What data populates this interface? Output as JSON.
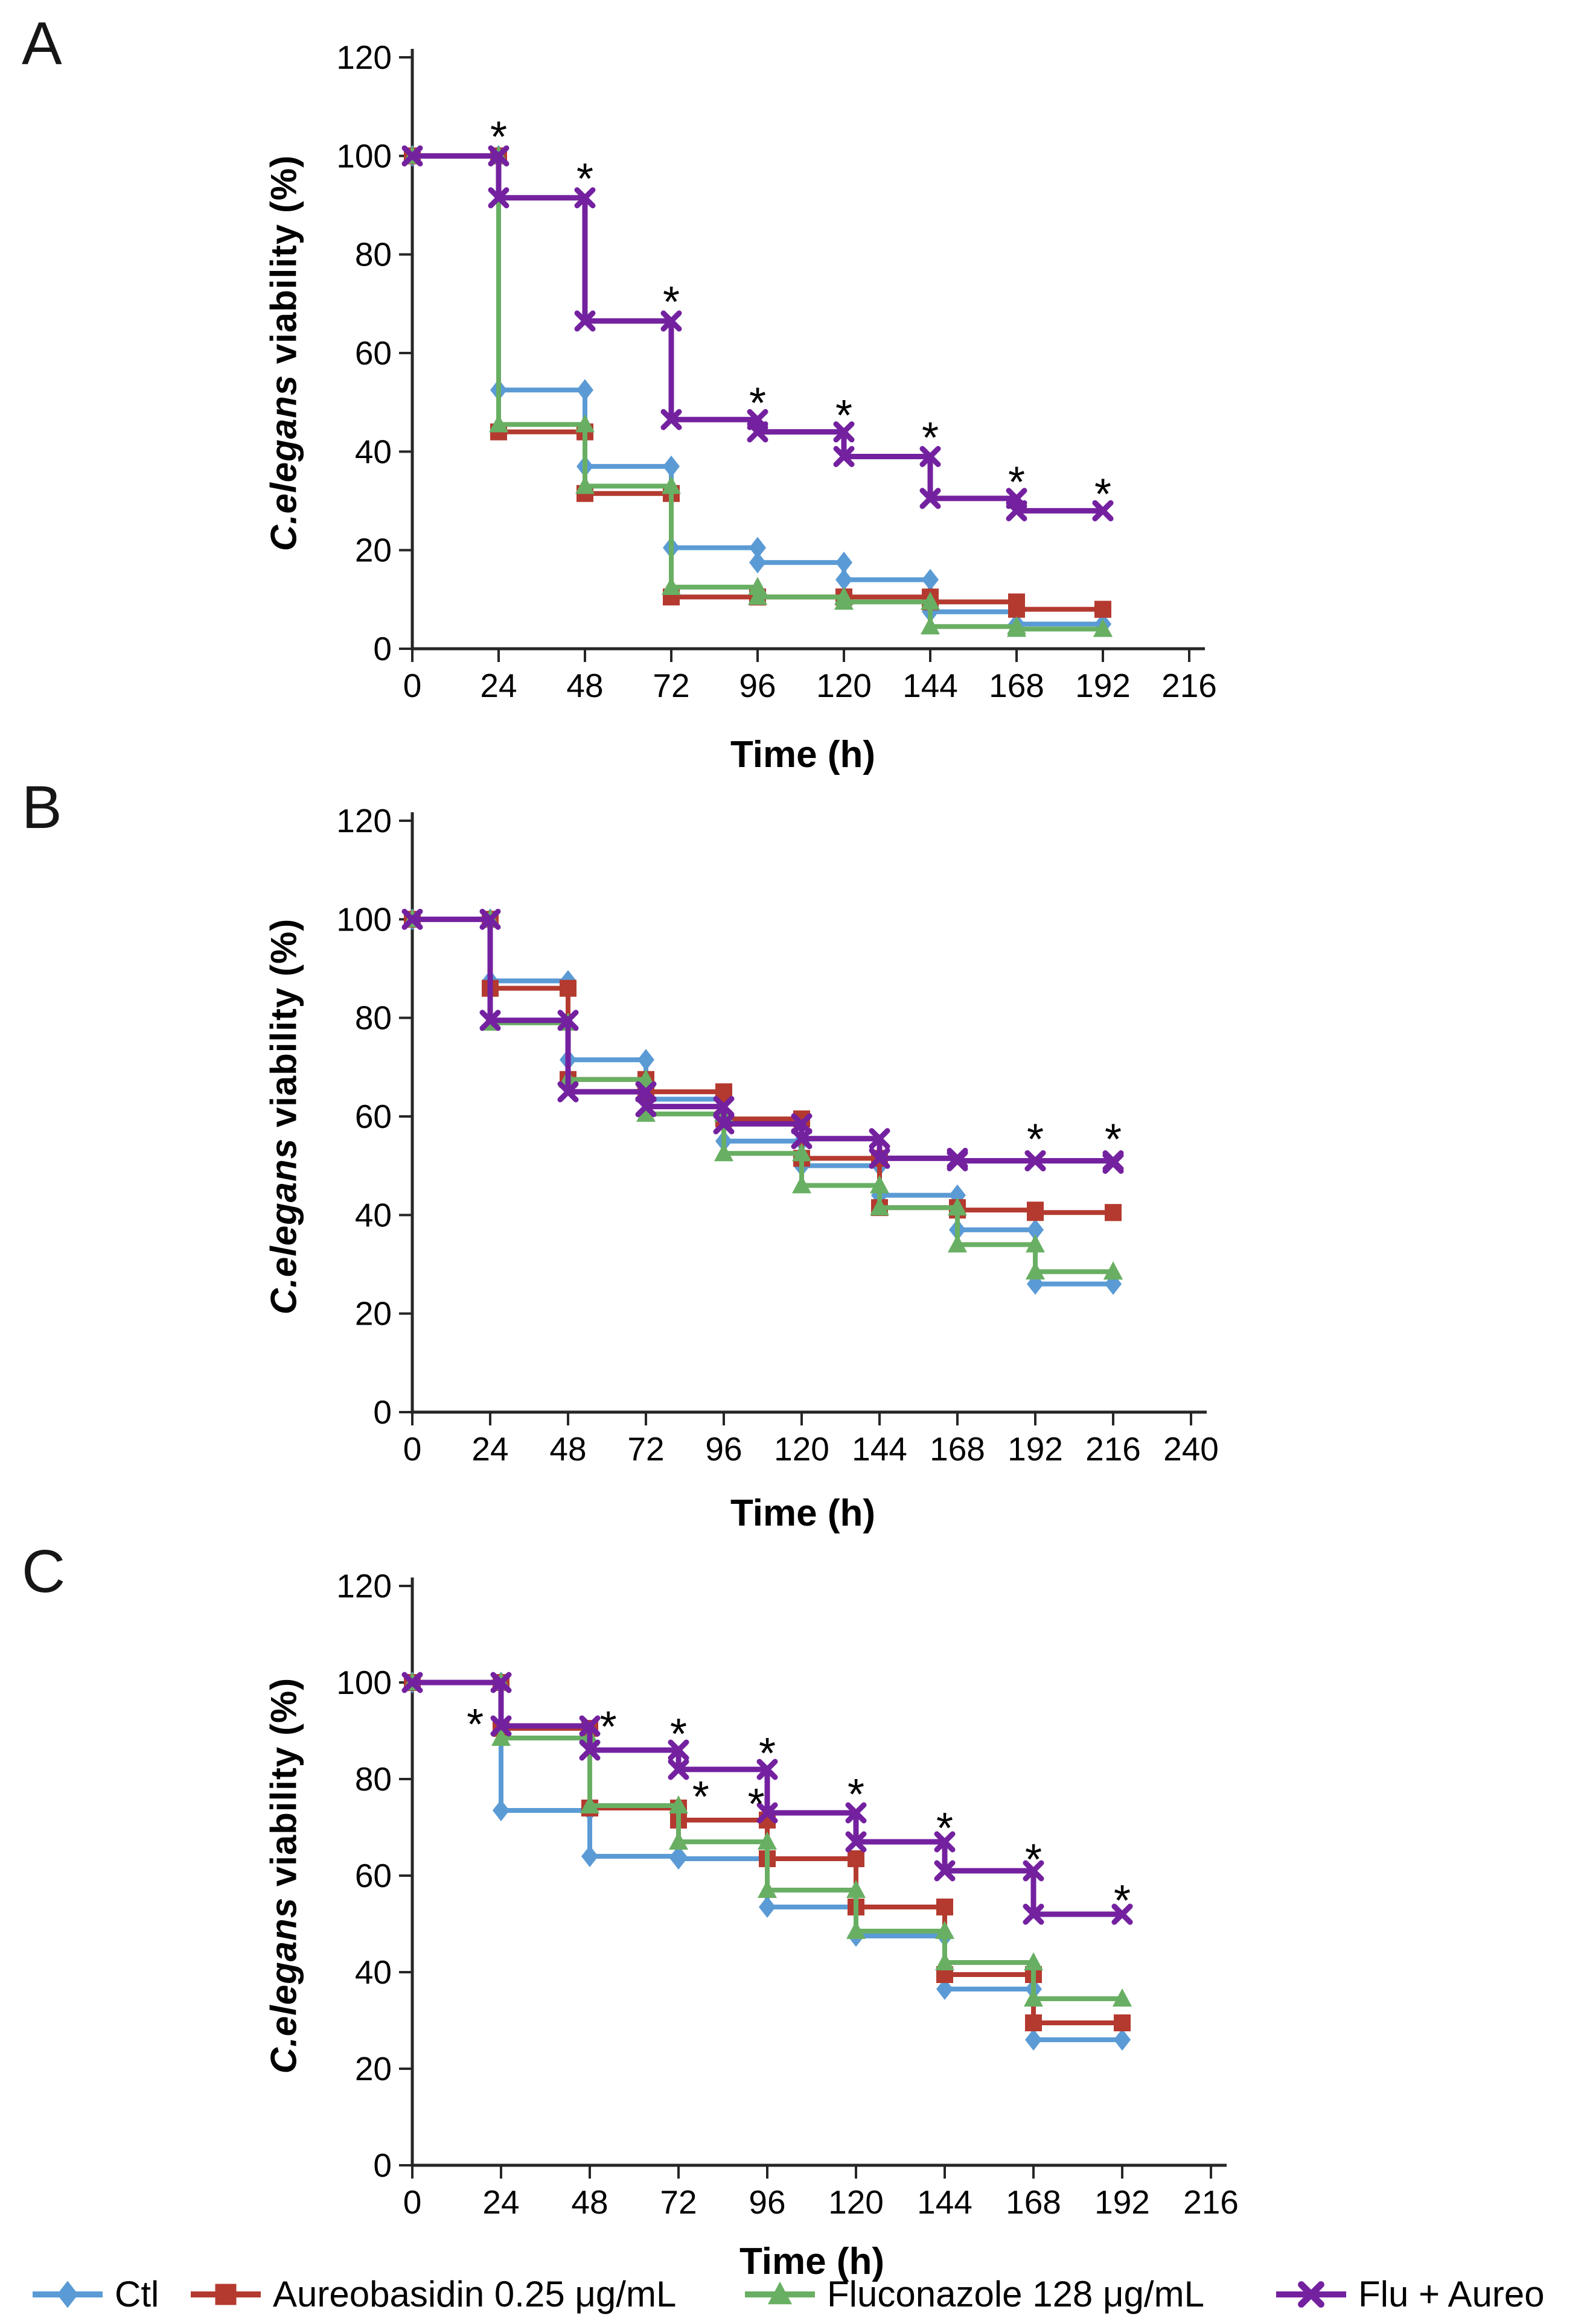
{
  "palette": {
    "ctl": "#5B9BD5",
    "aureo": "#B43A2F",
    "flu": "#69AF63",
    "combo": "#7421A0",
    "axis": "#262626"
  },
  "markers": {
    "ctl": "diamond",
    "aureo": "square",
    "flu": "triangle",
    "combo": "xmark"
  },
  "significance_symbol": "*",
  "legend": {
    "items": [
      {
        "key": "ctl",
        "label": "Ctl"
      },
      {
        "key": "aureo",
        "label": "Aureobasidin 0.25 μg/mL"
      },
      {
        "key": "flu",
        "label": "Fluconazole 128 μg/mL"
      },
      {
        "key": "combo",
        "label": "Flu + Aureo"
      }
    ]
  },
  "chart_data": [
    {
      "id": "A",
      "panel_label": "A",
      "type": "step-line",
      "title": "",
      "xlabel": "Time (h)",
      "ylabel_italic": "C.elegans",
      "ylabel_rest": " viability (%)",
      "xlim": [
        0,
        216
      ],
      "ylim": [
        0,
        120
      ],
      "xticks": [
        0,
        24,
        48,
        72,
        96,
        120,
        144,
        168,
        192,
        216
      ],
      "yticks": [
        0,
        20,
        40,
        60,
        80,
        100,
        120
      ],
      "x": [
        0,
        24,
        48,
        72,
        96,
        120,
        144,
        168,
        192
      ],
      "series": [
        {
          "key": "ctl",
          "name": "Ctl",
          "values": [
            100,
            52.5,
            37,
            20.5,
            17.5,
            14,
            7.5,
            5,
            5
          ]
        },
        {
          "key": "aureo",
          "name": "Aureobasidin 0.25 μg/mL",
          "values": [
            100,
            44,
            31.5,
            10.5,
            10.5,
            10.5,
            9.5,
            8,
            8
          ]
        },
        {
          "key": "flu",
          "name": "Fluconazole 128 μg/mL",
          "values": [
            100,
            45.5,
            33,
            12.5,
            10.5,
            9.5,
            4.5,
            4,
            4
          ]
        },
        {
          "key": "combo",
          "name": "Flu + Aureo",
          "values": [
            100,
            91.5,
            66.5,
            46.5,
            44,
            39,
            30.5,
            28,
            28
          ]
        }
      ],
      "asterisks": [
        {
          "t": 24,
          "v": 104.5
        },
        {
          "t": 48,
          "v": 96
        },
        {
          "t": 72,
          "v": 71
        },
        {
          "t": 96,
          "v": 50.5
        },
        {
          "t": 120,
          "v": 48
        },
        {
          "t": 144,
          "v": 43.5
        },
        {
          "t": 168,
          "v": 34.5
        },
        {
          "t": 192,
          "v": 32
        }
      ]
    },
    {
      "id": "B",
      "panel_label": "B",
      "type": "step-line",
      "title": "",
      "xlabel": "Time (h)",
      "ylabel_italic": "C.elegans",
      "ylabel_rest": " viability (%)",
      "xlim": [
        0,
        240
      ],
      "ylim": [
        0,
        120
      ],
      "xticks": [
        0,
        24,
        48,
        72,
        96,
        120,
        144,
        168,
        192,
        216,
        240
      ],
      "yticks": [
        0,
        20,
        40,
        60,
        80,
        100,
        120
      ],
      "x": [
        0,
        24,
        48,
        72,
        96,
        120,
        144,
        168,
        192,
        216
      ],
      "series": [
        {
          "key": "ctl",
          "name": "Ctl",
          "values": [
            100,
            87.5,
            71.5,
            63.5,
            55,
            50,
            44,
            37,
            26,
            26
          ]
        },
        {
          "key": "aureo",
          "name": "Aureobasidin 0.25 μg/mL",
          "values": [
            100,
            86,
            67.5,
            65,
            59.5,
            51.5,
            41.5,
            41,
            40.5,
            40.5
          ]
        },
        {
          "key": "flu",
          "name": "Fluconazole 128 μg/mL",
          "values": [
            100,
            79,
            67.5,
            60.5,
            52.5,
            46,
            41.5,
            34,
            28.5,
            28.5
          ]
        },
        {
          "key": "combo",
          "name": "Flu + Aureo",
          "values": [
            100,
            79.5,
            65,
            62,
            58.5,
            55.5,
            51.5,
            51,
            51,
            50.5
          ]
        }
      ],
      "asterisks": [
        {
          "t": 192,
          "v": 56
        },
        {
          "t": 216,
          "v": 56
        }
      ]
    },
    {
      "id": "C",
      "panel_label": "C",
      "type": "step-line",
      "title": "",
      "xlabel": "Time (h)",
      "ylabel_italic": "C.elegans",
      "ylabel_rest": " viability (%)",
      "xlim": [
        0,
        216
      ],
      "ylim": [
        0,
        120
      ],
      "xticks": [
        0,
        24,
        48,
        72,
        96,
        120,
        144,
        168,
        192,
        216
      ],
      "yticks": [
        0,
        20,
        40,
        60,
        80,
        100,
        120
      ],
      "x": [
        0,
        24,
        48,
        72,
        96,
        120,
        144,
        168,
        192
      ],
      "series": [
        {
          "key": "ctl",
          "name": "Ctl",
          "values": [
            100,
            73.5,
            64,
            63.5,
            53.5,
            47.5,
            36.5,
            26,
            26
          ]
        },
        {
          "key": "aureo",
          "name": "Aureobasidin 0.25 μg/mL",
          "values": [
            100,
            90.5,
            74,
            71.5,
            63.5,
            53.5,
            39.5,
            29.5,
            29.5
          ]
        },
        {
          "key": "flu",
          "name": "Fluconazole 128 μg/mL",
          "values": [
            100,
            88.5,
            74.5,
            67,
            57,
            48.5,
            42,
            34.5,
            34.5
          ]
        },
        {
          "key": "combo",
          "name": "Flu + Aureo",
          "values": [
            100,
            91,
            86,
            82,
            73,
            67,
            61,
            52,
            52
          ]
        }
      ],
      "asterisks": [
        {
          "t": 17,
          "v": 92
        },
        {
          "t": 53,
          "v": 91.5
        },
        {
          "t": 72,
          "v": 90
        },
        {
          "t": 96,
          "v": 86
        },
        {
          "t": 78,
          "v": 77
        },
        {
          "t": 93,
          "v": 75.5
        },
        {
          "t": 120,
          "v": 77.5
        },
        {
          "t": 144,
          "v": 70.5
        },
        {
          "t": 168,
          "v": 64
        },
        {
          "t": 192,
          "v": 55.5
        }
      ]
    }
  ]
}
